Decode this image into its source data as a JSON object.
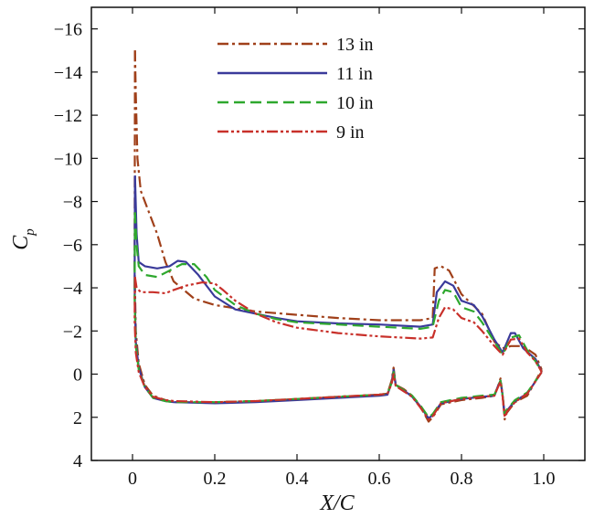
{
  "chart_data": {
    "type": "line",
    "xlabel": "X/C",
    "ylabel": "C",
    "ylabel_subscript": "p",
    "xlim": [
      -0.1,
      1.1
    ],
    "ylim": [
      4,
      -17
    ],
    "y_inverted": true,
    "xticks": [
      0,
      0.2,
      0.4,
      0.6,
      0.8,
      1.0
    ],
    "xtick_labels": [
      "0",
      "0.2",
      "0.4",
      "0.6",
      "0.8",
      "1.0"
    ],
    "yticks": [
      -16,
      -14,
      -12,
      -10,
      -8,
      -6,
      -4,
      -2,
      0,
      2,
      4
    ],
    "ytick_labels": [
      "−16",
      "−14",
      "−12",
      "−10",
      "−8",
      "−6",
      "−4",
      "−2",
      "0",
      "2",
      "4"
    ],
    "grid": false,
    "legend_position": "top-center",
    "series": [
      {
        "name": "13 in",
        "color": "#a0401a",
        "dash": "dash-dot",
        "upper": [
          [
            0.006,
            -15.0
          ],
          [
            0.008,
            -13.0
          ],
          [
            0.012,
            -10.0
          ],
          [
            0.02,
            -8.5
          ],
          [
            0.04,
            -7.5
          ],
          [
            0.06,
            -6.5
          ],
          [
            0.08,
            -5.2
          ],
          [
            0.1,
            -4.3
          ],
          [
            0.15,
            -3.5
          ],
          [
            0.2,
            -3.2
          ],
          [
            0.3,
            -2.9
          ],
          [
            0.4,
            -2.75
          ],
          [
            0.5,
            -2.6
          ],
          [
            0.6,
            -2.5
          ],
          [
            0.7,
            -2.5
          ],
          [
            0.73,
            -2.6
          ],
          [
            0.735,
            -4.9
          ],
          [
            0.75,
            -5.0
          ],
          [
            0.77,
            -4.8
          ],
          [
            0.8,
            -3.7
          ],
          [
            0.85,
            -2.8
          ],
          [
            0.88,
            -1.5
          ],
          [
            0.9,
            -1.2
          ],
          [
            0.92,
            -1.3
          ],
          [
            0.95,
            -1.3
          ],
          [
            0.98,
            -0.9
          ],
          [
            0.995,
            -0.2
          ]
        ],
        "lower": [
          [
            0.006,
            -15.0
          ],
          [
            0.005,
            -5.0
          ],
          [
            0.008,
            -2.0
          ],
          [
            0.015,
            -0.5
          ],
          [
            0.03,
            0.5
          ],
          [
            0.05,
            1.0
          ],
          [
            0.08,
            1.2
          ],
          [
            0.1,
            1.3
          ],
          [
            0.2,
            1.3
          ],
          [
            0.3,
            1.25
          ],
          [
            0.4,
            1.15
          ],
          [
            0.5,
            1.05
          ],
          [
            0.6,
            0.95
          ],
          [
            0.62,
            0.9
          ],
          [
            0.63,
            0.3
          ],
          [
            0.635,
            -0.3
          ],
          [
            0.64,
            0.5
          ],
          [
            0.66,
            0.7
          ],
          [
            0.68,
            1.0
          ],
          [
            0.7,
            1.5
          ],
          [
            0.72,
            2.2
          ],
          [
            0.73,
            2.0
          ],
          [
            0.75,
            1.4
          ],
          [
            0.8,
            1.2
          ],
          [
            0.85,
            1.1
          ],
          [
            0.88,
            1.0
          ],
          [
            0.89,
            0.5
          ],
          [
            0.895,
            0.2
          ],
          [
            0.9,
            1.0
          ],
          [
            0.905,
            2.1
          ],
          [
            0.91,
            1.8
          ],
          [
            0.93,
            1.3
          ],
          [
            0.96,
            1.0
          ],
          [
            0.995,
            -0.2
          ]
        ]
      },
      {
        "name": "11 in",
        "color": "#3a3a9a",
        "dash": "solid",
        "upper": [
          [
            0.006,
            -9.2
          ],
          [
            0.01,
            -6.5
          ],
          [
            0.015,
            -5.2
          ],
          [
            0.03,
            -5.0
          ],
          [
            0.06,
            -4.9
          ],
          [
            0.09,
            -5.0
          ],
          [
            0.11,
            -5.25
          ],
          [
            0.13,
            -5.2
          ],
          [
            0.14,
            -5.0
          ],
          [
            0.16,
            -4.6
          ],
          [
            0.2,
            -3.6
          ],
          [
            0.25,
            -3.0
          ],
          [
            0.3,
            -2.8
          ],
          [
            0.35,
            -2.6
          ],
          [
            0.4,
            -2.45
          ],
          [
            0.5,
            -2.35
          ],
          [
            0.6,
            -2.3
          ],
          [
            0.7,
            -2.2
          ],
          [
            0.73,
            -2.3
          ],
          [
            0.74,
            -3.8
          ],
          [
            0.76,
            -4.3
          ],
          [
            0.78,
            -4.1
          ],
          [
            0.8,
            -3.4
          ],
          [
            0.83,
            -3.2
          ],
          [
            0.85,
            -2.7
          ],
          [
            0.88,
            -1.6
          ],
          [
            0.9,
            -1.0
          ],
          [
            0.92,
            -1.9
          ],
          [
            0.93,
            -1.9
          ],
          [
            0.95,
            -1.2
          ],
          [
            0.98,
            -0.7
          ],
          [
            0.995,
            -0.1
          ]
        ],
        "lower": [
          [
            0.006,
            -9.2
          ],
          [
            0.005,
            -4.0
          ],
          [
            0.008,
            -1.5
          ],
          [
            0.015,
            -0.3
          ],
          [
            0.03,
            0.6
          ],
          [
            0.05,
            1.1
          ],
          [
            0.08,
            1.25
          ],
          [
            0.1,
            1.3
          ],
          [
            0.2,
            1.35
          ],
          [
            0.3,
            1.3
          ],
          [
            0.4,
            1.2
          ],
          [
            0.5,
            1.1
          ],
          [
            0.6,
            1.0
          ],
          [
            0.62,
            0.95
          ],
          [
            0.63,
            0.4
          ],
          [
            0.635,
            -0.2
          ],
          [
            0.64,
            0.5
          ],
          [
            0.66,
            0.75
          ],
          [
            0.68,
            1.05
          ],
          [
            0.7,
            1.5
          ],
          [
            0.72,
            2.05
          ],
          [
            0.73,
            1.9
          ],
          [
            0.75,
            1.35
          ],
          [
            0.8,
            1.15
          ],
          [
            0.85,
            1.05
          ],
          [
            0.88,
            1.0
          ],
          [
            0.89,
            0.5
          ],
          [
            0.895,
            0.3
          ],
          [
            0.9,
            1.0
          ],
          [
            0.905,
            1.9
          ],
          [
            0.91,
            1.7
          ],
          [
            0.93,
            1.25
          ],
          [
            0.96,
            0.9
          ],
          [
            0.995,
            -0.1
          ]
        ]
      },
      {
        "name": "10 in",
        "color": "#2ea82e",
        "dash": "dashed",
        "upper": [
          [
            0.006,
            -7.5
          ],
          [
            0.01,
            -6.0
          ],
          [
            0.015,
            -5.0
          ],
          [
            0.03,
            -4.6
          ],
          [
            0.06,
            -4.5
          ],
          [
            0.09,
            -4.8
          ],
          [
            0.12,
            -5.1
          ],
          [
            0.15,
            -5.1
          ],
          [
            0.18,
            -4.5
          ],
          [
            0.2,
            -3.9
          ],
          [
            0.25,
            -3.2
          ],
          [
            0.3,
            -2.8
          ],
          [
            0.35,
            -2.55
          ],
          [
            0.4,
            -2.4
          ],
          [
            0.5,
            -2.3
          ],
          [
            0.6,
            -2.2
          ],
          [
            0.7,
            -2.1
          ],
          [
            0.73,
            -2.2
          ],
          [
            0.745,
            -3.4
          ],
          [
            0.76,
            -3.9
          ],
          [
            0.78,
            -3.8
          ],
          [
            0.8,
            -3.1
          ],
          [
            0.83,
            -2.9
          ],
          [
            0.85,
            -2.4
          ],
          [
            0.88,
            -1.5
          ],
          [
            0.9,
            -0.9
          ],
          [
            0.92,
            -1.7
          ],
          [
            0.94,
            -1.8
          ],
          [
            0.96,
            -1.1
          ],
          [
            0.98,
            -0.6
          ],
          [
            0.995,
            -0.1
          ]
        ],
        "lower": [
          [
            0.006,
            -7.5
          ],
          [
            0.005,
            -3.5
          ],
          [
            0.008,
            -1.3
          ],
          [
            0.015,
            -0.2
          ],
          [
            0.03,
            0.6
          ],
          [
            0.05,
            1.1
          ],
          [
            0.08,
            1.25
          ],
          [
            0.1,
            1.3
          ],
          [
            0.2,
            1.3
          ],
          [
            0.3,
            1.25
          ],
          [
            0.4,
            1.15
          ],
          [
            0.5,
            1.05
          ],
          [
            0.6,
            0.95
          ],
          [
            0.62,
            0.9
          ],
          [
            0.63,
            0.4
          ],
          [
            0.635,
            -0.1
          ],
          [
            0.64,
            0.5
          ],
          [
            0.66,
            0.75
          ],
          [
            0.68,
            1.0
          ],
          [
            0.7,
            1.45
          ],
          [
            0.72,
            2.0
          ],
          [
            0.73,
            1.85
          ],
          [
            0.75,
            1.3
          ],
          [
            0.8,
            1.1
          ],
          [
            0.85,
            1.0
          ],
          [
            0.88,
            0.95
          ],
          [
            0.89,
            0.5
          ],
          [
            0.895,
            0.3
          ],
          [
            0.9,
            1.0
          ],
          [
            0.905,
            1.85
          ],
          [
            0.91,
            1.65
          ],
          [
            0.93,
            1.2
          ],
          [
            0.96,
            0.85
          ],
          [
            0.995,
            -0.1
          ]
        ]
      },
      {
        "name": "9 in",
        "color": "#c8302a",
        "dash": "dash-dot-dot",
        "upper": [
          [
            0.006,
            -4.5
          ],
          [
            0.01,
            -4.0
          ],
          [
            0.02,
            -3.8
          ],
          [
            0.05,
            -3.8
          ],
          [
            0.08,
            -3.75
          ],
          [
            0.1,
            -3.9
          ],
          [
            0.13,
            -4.1
          ],
          [
            0.17,
            -4.25
          ],
          [
            0.2,
            -4.2
          ],
          [
            0.22,
            -3.9
          ],
          [
            0.25,
            -3.4
          ],
          [
            0.3,
            -2.8
          ],
          [
            0.35,
            -2.4
          ],
          [
            0.4,
            -2.15
          ],
          [
            0.5,
            -1.9
          ],
          [
            0.6,
            -1.75
          ],
          [
            0.7,
            -1.65
          ],
          [
            0.73,
            -1.7
          ],
          [
            0.745,
            -2.6
          ],
          [
            0.76,
            -3.1
          ],
          [
            0.78,
            -3.0
          ],
          [
            0.8,
            -2.6
          ],
          [
            0.83,
            -2.4
          ],
          [
            0.85,
            -2.0
          ],
          [
            0.88,
            -1.3
          ],
          [
            0.9,
            -0.9
          ],
          [
            0.92,
            -1.6
          ],
          [
            0.94,
            -1.65
          ],
          [
            0.96,
            -1.0
          ],
          [
            0.98,
            -0.6
          ],
          [
            0.995,
            -0.1
          ]
        ],
        "lower": [
          [
            0.006,
            -4.5
          ],
          [
            0.005,
            -2.5
          ],
          [
            0.008,
            -1.0
          ],
          [
            0.015,
            -0.1
          ],
          [
            0.03,
            0.6
          ],
          [
            0.05,
            1.05
          ],
          [
            0.08,
            1.2
          ],
          [
            0.1,
            1.25
          ],
          [
            0.2,
            1.3
          ],
          [
            0.3,
            1.25
          ],
          [
            0.4,
            1.15
          ],
          [
            0.5,
            1.05
          ],
          [
            0.6,
            0.95
          ],
          [
            0.62,
            0.9
          ],
          [
            0.63,
            0.45
          ],
          [
            0.635,
            0.0
          ],
          [
            0.64,
            0.55
          ],
          [
            0.66,
            0.8
          ],
          [
            0.68,
            1.05
          ],
          [
            0.7,
            1.55
          ],
          [
            0.72,
            2.1
          ],
          [
            0.73,
            1.95
          ],
          [
            0.75,
            1.35
          ],
          [
            0.8,
            1.15
          ],
          [
            0.85,
            1.05
          ],
          [
            0.88,
            1.0
          ],
          [
            0.89,
            0.55
          ],
          [
            0.895,
            0.35
          ],
          [
            0.9,
            1.05
          ],
          [
            0.905,
            2.0
          ],
          [
            0.91,
            1.75
          ],
          [
            0.93,
            1.3
          ],
          [
            0.96,
            0.9
          ],
          [
            0.995,
            -0.1
          ]
        ]
      }
    ]
  }
}
